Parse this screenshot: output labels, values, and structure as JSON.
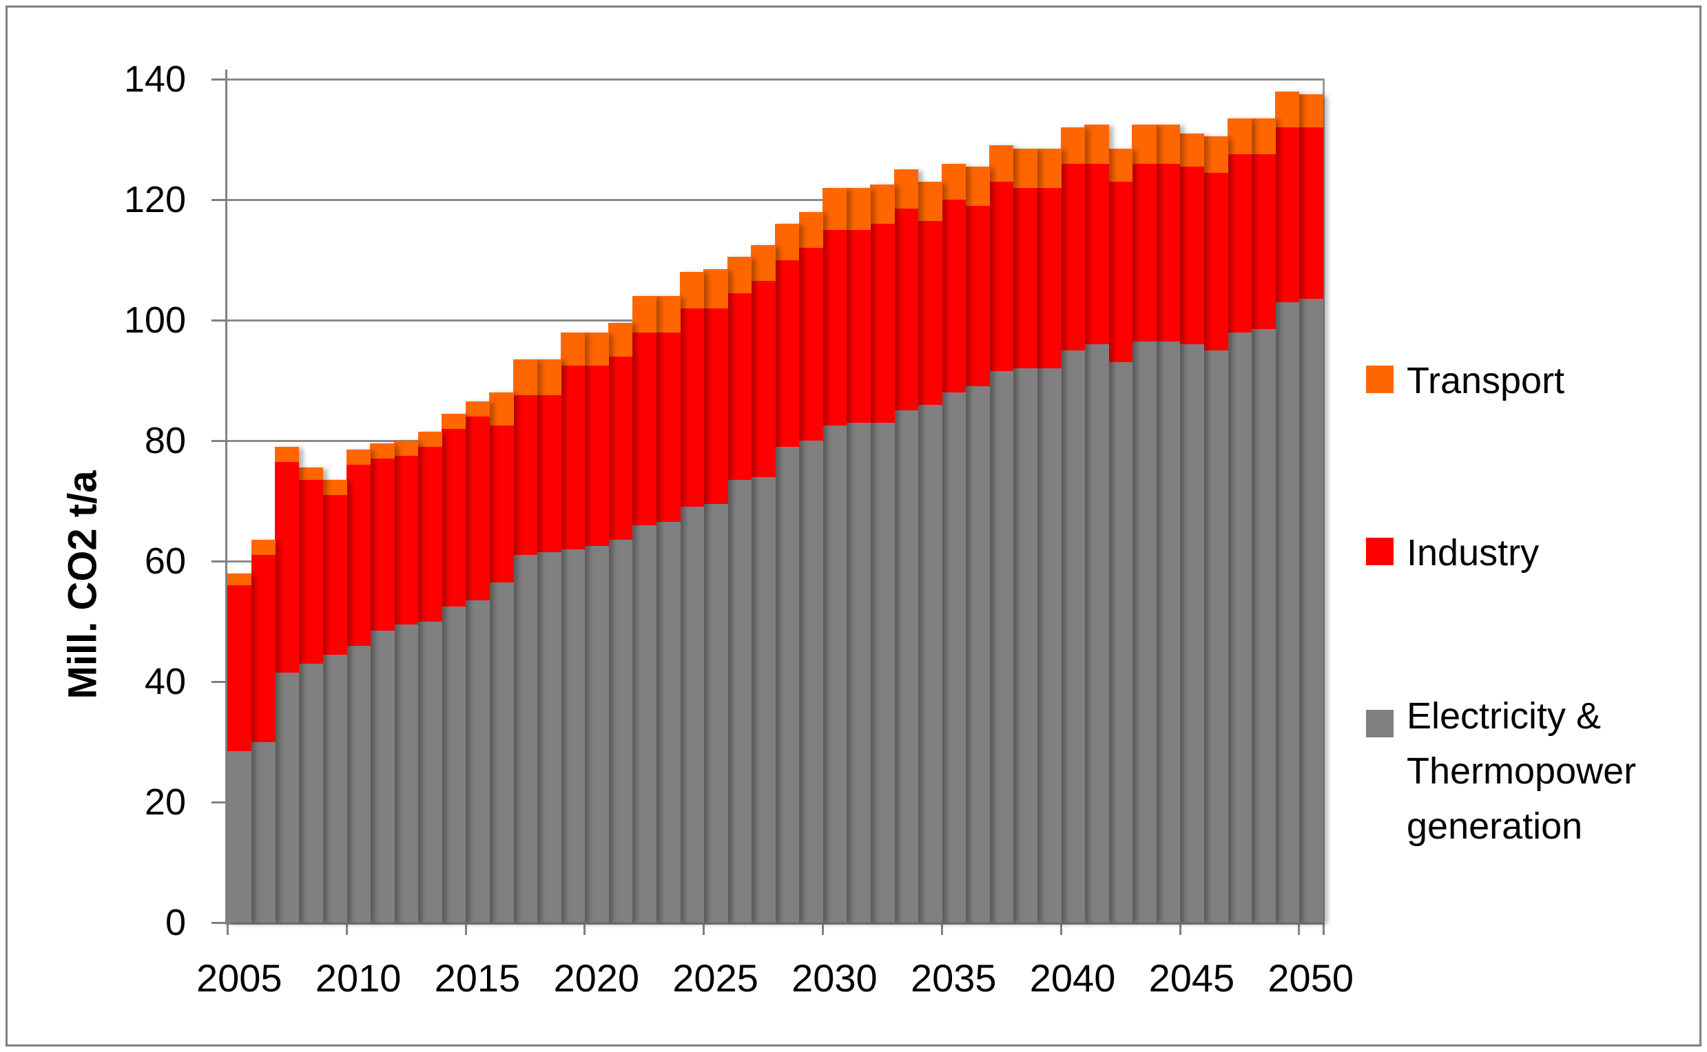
{
  "chart_data": {
    "type": "bar",
    "stacked": true,
    "title": "",
    "xlabel": "",
    "ylabel": "Mill. CO2 t/a",
    "ylim": [
      0,
      140
    ],
    "ytick_interval": 20,
    "grid": true,
    "legend_position": "right",
    "x": [
      2005,
      2006,
      2007,
      2008,
      2009,
      2010,
      2011,
      2012,
      2013,
      2014,
      2015,
      2016,
      2017,
      2018,
      2019,
      2020,
      2021,
      2022,
      2023,
      2024,
      2025,
      2026,
      2027,
      2028,
      2029,
      2030,
      2031,
      2032,
      2033,
      2034,
      2035,
      2036,
      2037,
      2038,
      2039,
      2040,
      2041,
      2042,
      2043,
      2044,
      2045,
      2046,
      2047,
      2048,
      2049,
      2050
    ],
    "x_tick_labels": [
      "2005",
      "2010",
      "2015",
      "2020",
      "2025",
      "2030",
      "2035",
      "2040",
      "2045",
      "2050"
    ],
    "y_tick_labels": [
      "0",
      "20",
      "40",
      "60",
      "80",
      "100",
      "120",
      "140"
    ],
    "series": [
      {
        "name": "Transport",
        "color": "#FF6600",
        "values": [
          2,
          2.5,
          2.5,
          2,
          2.5,
          2.5,
          2.5,
          2.5,
          2.5,
          2.5,
          2.5,
          5.5,
          6,
          6,
          5.5,
          5.5,
          5.5,
          6,
          6,
          6,
          6.5,
          6,
          6,
          6,
          6,
          7,
          7,
          6.5,
          6.5,
          6.5,
          6,
          6.5,
          6,
          6.5,
          6.5,
          6,
          6.5,
          5.5,
          6.5,
          6.5,
          5.5,
          6,
          6,
          6,
          6,
          5.5
        ]
      },
      {
        "name": "Industry",
        "color": "#FF0000",
        "values": [
          27.5,
          31,
          35,
          30.5,
          26.5,
          30,
          28.5,
          28,
          29,
          29.5,
          30.5,
          26,
          26.5,
          26,
          30.5,
          30,
          30.5,
          32,
          31.5,
          33,
          32.5,
          31,
          32.5,
          31,
          32,
          32.5,
          32,
          33,
          33.5,
          30.5,
          32,
          30,
          31.5,
          30,
          30,
          31,
          30,
          30,
          29.5,
          29.5,
          29.5,
          29.5,
          29.5,
          29,
          29,
          28.5
        ]
      },
      {
        "name": "Electricity & Thermopower generation",
        "color": "#808080",
        "values": [
          28.5,
          30,
          41.5,
          43,
          44.5,
          46,
          48.5,
          49.5,
          50,
          52.5,
          53.5,
          56.5,
          61,
          61.5,
          62,
          62.5,
          63.5,
          66,
          66.5,
          69,
          69.5,
          73.5,
          74,
          79,
          80,
          82.5,
          83,
          83,
          85,
          86,
          88,
          89,
          91.5,
          92,
          92,
          95,
          96,
          93,
          96.5,
          96.5,
          96,
          95,
          98,
          98.5,
          103,
          103.5
        ]
      }
    ]
  },
  "legend": {
    "items": [
      {
        "label": "Transport",
        "color": "#FF6600"
      },
      {
        "label": "Industry",
        "color": "#FF0000"
      },
      {
        "label": "Electricity &\nThermopower\ngeneration",
        "color": "#808080"
      }
    ]
  },
  "axes": {
    "y_title": "Mill. CO2 t/a"
  }
}
